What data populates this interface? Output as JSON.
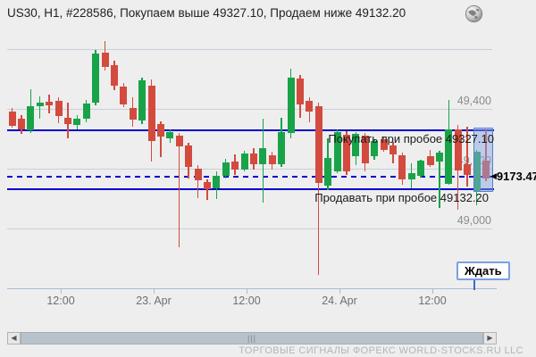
{
  "window": {
    "title": "US30, H1, #228586, Покупаем выше 49327.10, Продаем ниже 49132.20"
  },
  "chart_data": {
    "type": "candlestick",
    "symbol": "US30",
    "timeframe": "H1",
    "order_id": "#228586",
    "candles": [
      [
        49390,
        49402,
        49336,
        49344
      ],
      [
        49366,
        49378,
        49316,
        49330
      ],
      [
        49328,
        49465,
        49320,
        49408
      ],
      [
        49408,
        49442,
        49368,
        49422
      ],
      [
        49424,
        49448,
        49386,
        49412
      ],
      [
        49426,
        49440,
        49352,
        49376
      ],
      [
        49370,
        49420,
        49300,
        49348
      ],
      [
        49346,
        49380,
        49330,
        49368
      ],
      [
        49366,
        49430,
        49356,
        49418
      ],
      [
        49420,
        49598,
        49412,
        49585
      ],
      [
        49588,
        49627,
        49528,
        49540
      ],
      [
        49545,
        49560,
        49462,
        49478
      ],
      [
        49476,
        49486,
        49406,
        49416
      ],
      [
        49403,
        49440,
        49340,
        49364
      ],
      [
        49360,
        49505,
        49348,
        49495
      ],
      [
        49478,
        49500,
        49225,
        49292
      ],
      [
        49348,
        49358,
        49240,
        49307
      ],
      [
        49302,
        49330,
        49288,
        49322
      ],
      [
        49310,
        49320,
        48937,
        49274
      ],
      [
        49278,
        49288,
        49167,
        49206
      ],
      [
        49200,
        49212,
        49102,
        49160
      ],
      [
        49156,
        49165,
        49095,
        49130
      ],
      [
        49134,
        49192,
        49098,
        49176
      ],
      [
        49176,
        49232,
        49168,
        49220
      ],
      [
        49224,
        49248,
        49180,
        49196
      ],
      [
        49198,
        49260,
        49190,
        49252
      ],
      [
        49250,
        49270,
        49198,
        49216
      ],
      [
        49216,
        49367,
        49087,
        49268
      ],
      [
        49246,
        49258,
        49198,
        49214
      ],
      [
        49214,
        49370,
        49206,
        49322
      ],
      [
        49320,
        49534,
        49301,
        49505
      ],
      [
        49502,
        49512,
        49370,
        49416
      ],
      [
        49427,
        49440,
        49356,
        49391
      ],
      [
        49409,
        49420,
        48845,
        49152
      ],
      [
        49142,
        49301,
        49128,
        49237
      ],
      [
        49192,
        49330,
        49185,
        49321
      ],
      [
        49312,
        49325,
        49178,
        49190
      ],
      [
        49242,
        49322,
        49212,
        49316
      ],
      [
        49309,
        49318,
        49192,
        49218
      ],
      [
        49243,
        49298,
        49229,
        49293
      ],
      [
        49299,
        49308,
        49258,
        49264
      ],
      [
        49279,
        49290,
        49219,
        49249
      ],
      [
        49244,
        49254,
        49145,
        49165
      ],
      [
        49165,
        49218,
        49133,
        49185
      ],
      [
        49176,
        49230,
        49170,
        49226
      ],
      [
        49243,
        49262,
        49205,
        49213
      ],
      [
        49225,
        49260,
        49069,
        49254
      ],
      [
        49150,
        49430,
        49145,
        49330
      ],
      [
        49330,
        49345,
        49062,
        49195
      ],
      [
        49215,
        49340,
        49140,
        49180
      ],
      [
        49122,
        49262,
        49078,
        49256
      ],
      [
        49227,
        49327,
        49158,
        49167
      ]
    ],
    "y_ticks": [
      {
        "label": "49,400",
        "price": 49400
      },
      {
        "label": "49,200",
        "price": 49200
      },
      {
        "label": "49,000",
        "price": 49000
      }
    ],
    "gridline_prices": [
      49600,
      49400,
      49200,
      49000
    ],
    "x_ticks": [
      {
        "label": "12:00",
        "x": 68
      },
      {
        "label": "23. Apr",
        "x": 172
      },
      {
        "label": "12:00",
        "x": 276
      },
      {
        "label": "24. Apr",
        "x": 380
      },
      {
        "label": "12:00",
        "x": 484
      }
    ],
    "levels": {
      "buy": {
        "price": 49327.1,
        "label": "Покупать при пробое 49327.10"
      },
      "sell": {
        "price": 49132.2,
        "label": "Продавать при пробое 49132.20"
      },
      "current": {
        "price": 49173.47,
        "display": "9173.47",
        "arrow": "◀"
      }
    },
    "legend_position": "none",
    "grid": true,
    "colors": {
      "up": "#18a348",
      "down": "#d24b3e",
      "level_line": "#0000cc",
      "grid_line": "#c6d0dc",
      "axis_line": "#a9bdd2",
      "selection_fill": "#88a8e4"
    }
  },
  "signal_badge": {
    "label": "Ждать"
  },
  "scrollbar": {
    "left_arrow": "◀",
    "right_arrow": "▶",
    "grip": "|||"
  },
  "footer": {
    "watermark": "ТОРГОВЫЕ СИГНАЛЫ ФОРЕКС WORLD-STOCKS.RU LLC"
  }
}
